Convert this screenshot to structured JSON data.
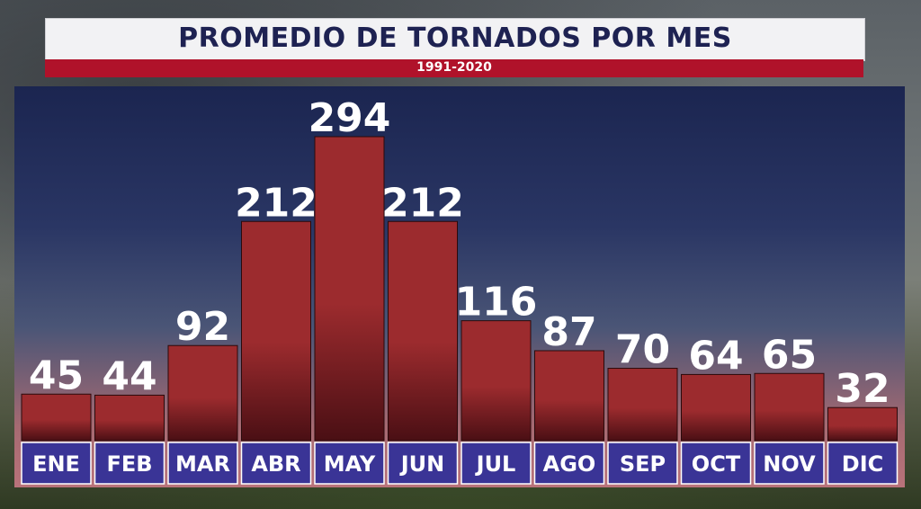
{
  "title": "PROMEDIO DE TORNADOS POR MES",
  "subtitle": "1991-2020",
  "colors": {
    "title_text": "#1e2252",
    "subtitle_bar": "#b0122a",
    "bar_top": "#9c2b2e",
    "bar_bottom": "#4a0f14",
    "category_box": "#3a3496"
  },
  "chart_data": {
    "type": "bar",
    "title": "PROMEDIO DE TORNADOS POR MES",
    "subtitle": "1991-2020",
    "categories": [
      "ENE",
      "FEB",
      "MAR",
      "ABR",
      "MAY",
      "JUN",
      "JUL",
      "AGO",
      "SEP",
      "OCT",
      "NOV",
      "DIC"
    ],
    "values": [
      45,
      44,
      92,
      212,
      294,
      212,
      116,
      87,
      70,
      64,
      65,
      32
    ],
    "data_labels": [
      "45",
      "44",
      "92",
      "212",
      "294",
      "212",
      "116",
      "87",
      "70",
      "64",
      "65",
      "32"
    ],
    "xlabel": "",
    "ylabel": "",
    "ylim": [
      0,
      294
    ],
    "grid": false,
    "legend": "none"
  }
}
